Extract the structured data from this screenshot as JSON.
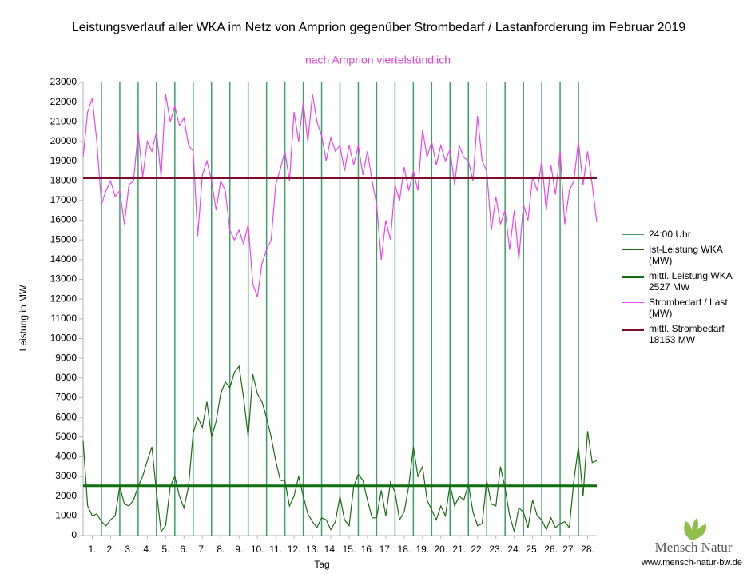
{
  "chart_data": {
    "type": "line",
    "title": "Leistungsverlauf aller WKA im Netz von Amprion gegenüber  Strombedarf / Lastanforderung im Februar 2019",
    "subtitle": "nach Amprion viertelstündlich",
    "xlabel": "Tag",
    "ylabel": "Leistung in MW",
    "xlim": [
      0,
      28
    ],
    "ylim": [
      0,
      23000
    ],
    "yticks": [
      0,
      1000,
      2000,
      3000,
      4000,
      5000,
      6000,
      7000,
      8000,
      9000,
      10000,
      11000,
      12000,
      13000,
      14000,
      15000,
      16000,
      17000,
      18000,
      19000,
      20000,
      21000,
      22000,
      23000
    ],
    "xticks": [
      {
        "value": 0.5,
        "label": "1."
      },
      {
        "value": 1.5,
        "label": "2."
      },
      {
        "value": 2.5,
        "label": "3."
      },
      {
        "value": 3.5,
        "label": "4."
      },
      {
        "value": 4.5,
        "label": "5."
      },
      {
        "value": 5.5,
        "label": "6."
      },
      {
        "value": 6.5,
        "label": "7."
      },
      {
        "value": 7.5,
        "label": "8."
      },
      {
        "value": 8.5,
        "label": "9."
      },
      {
        "value": 9.5,
        "label": "10."
      },
      {
        "value": 10.5,
        "label": "11."
      },
      {
        "value": 11.5,
        "label": "12."
      },
      {
        "value": 12.5,
        "label": "13."
      },
      {
        "value": 13.5,
        "label": "14."
      },
      {
        "value": 14.5,
        "label": "15."
      },
      {
        "value": 15.5,
        "label": "16."
      },
      {
        "value": 16.5,
        "label": "17."
      },
      {
        "value": 17.5,
        "label": "18."
      },
      {
        "value": 18.5,
        "label": "19."
      },
      {
        "value": 19.5,
        "label": "20."
      },
      {
        "value": 20.5,
        "label": "21."
      },
      {
        "value": 21.5,
        "label": "22."
      },
      {
        "value": 22.5,
        "label": "23."
      },
      {
        "value": 23.5,
        "label": "24."
      },
      {
        "value": 24.5,
        "label": "25."
      },
      {
        "value": 25.5,
        "label": "26."
      },
      {
        "value": 26.5,
        "label": "27."
      },
      {
        "value": 27.5,
        "label": "28."
      }
    ],
    "x": [
      0,
      0.25,
      0.5,
      0.75,
      1,
      1.25,
      1.5,
      1.75,
      2,
      2.25,
      2.5,
      2.75,
      3,
      3.25,
      3.5,
      3.75,
      4,
      4.25,
      4.5,
      4.75,
      5,
      5.25,
      5.5,
      5.75,
      6,
      6.25,
      6.5,
      6.75,
      7,
      7.25,
      7.5,
      7.75,
      8,
      8.25,
      8.5,
      8.75,
      9,
      9.25,
      9.5,
      9.75,
      10,
      10.25,
      10.5,
      10.75,
      11,
      11.25,
      11.5,
      11.75,
      12,
      12.25,
      12.5,
      12.75,
      13,
      13.25,
      13.5,
      13.75,
      14,
      14.25,
      14.5,
      14.75,
      15,
      15.25,
      15.5,
      15.75,
      16,
      16.25,
      16.5,
      16.75,
      17,
      17.25,
      17.5,
      17.75,
      18,
      18.25,
      18.5,
      18.75,
      19,
      19.25,
      19.5,
      19.75,
      20,
      20.25,
      20.5,
      20.75,
      21,
      21.25,
      21.5,
      21.75,
      22,
      22.25,
      22.5,
      22.75,
      23,
      23.25,
      23.5,
      23.75,
      24,
      24.25,
      24.5,
      24.75,
      25,
      25.25,
      25.5,
      25.75,
      26,
      26.25,
      26.5,
      26.75,
      27,
      27.25,
      27.5,
      27.75,
      28
    ],
    "series": [
      {
        "name": "24:00 Uhr",
        "type": "vline",
        "color": "#3aa06a",
        "x": [
          1,
          2,
          3,
          4,
          5,
          6,
          7,
          8,
          9,
          10,
          11,
          12,
          13,
          14,
          15,
          16,
          17,
          18,
          19,
          20,
          21,
          22,
          23,
          24,
          25,
          26,
          27
        ]
      },
      {
        "name": "Ist-Leistung WKA (MW)",
        "type": "line",
        "color": "#1e6b10",
        "values": [
          4800,
          1500,
          1000,
          1100,
          700,
          500,
          800,
          1000,
          2500,
          1600,
          1500,
          1800,
          2500,
          3000,
          3800,
          4500,
          2200,
          200,
          500,
          2500,
          3000,
          2000,
          1400,
          2500,
          5200,
          6000,
          5500,
          6800,
          5000,
          5800,
          7200,
          7800,
          7500,
          8300,
          8600,
          7000,
          5000,
          8200,
          7200,
          6800,
          6000,
          5000,
          3800,
          2800,
          2800,
          1500,
          2000,
          3000,
          2000,
          1100,
          700,
          400,
          900,
          800,
          300,
          700,
          2000,
          800,
          500,
          2500,
          3100,
          2800,
          1800,
          900,
          900,
          2300,
          1000,
          2700,
          2200,
          800,
          1200,
          2500,
          4500,
          3000,
          3500,
          1800,
          1300,
          800,
          1500,
          1000,
          2600,
          1500,
          2000,
          1800,
          2600,
          1200,
          500,
          600,
          2800,
          1600,
          1500,
          3500,
          2400,
          1000,
          200,
          1400,
          1200,
          400,
          1800,
          1000,
          800,
          300,
          900,
          400,
          600,
          700,
          400,
          2800,
          4500,
          2000,
          5300,
          3700,
          3800
        ]
      },
      {
        "name": "mittl. Leistung WKA 2527 MW",
        "type": "hline",
        "color": "#0f6e0f",
        "value": 2527
      },
      {
        "name": "Strombedarf / Last (MW)",
        "type": "line",
        "color": "#ee44ee",
        "values": [
          19200,
          21500,
          22200,
          20000,
          16800,
          17500,
          18000,
          17200,
          17500,
          15800,
          17800,
          18000,
          20500,
          18200,
          20000,
          19500,
          20500,
          18200,
          22400,
          21000,
          21800,
          20800,
          21200,
          19800,
          19500,
          15200,
          18300,
          19000,
          18000,
          16500,
          18000,
          17500,
          15500,
          15000,
          15500,
          14800,
          15800,
          12800,
          12100,
          13800,
          14500,
          15000,
          17800,
          18600,
          19500,
          18000,
          21500,
          20000,
          22000,
          20000,
          22400,
          21000,
          20300,
          19000,
          20200,
          19500,
          19800,
          18500,
          19800,
          18800,
          19800,
          18300,
          19500,
          18000,
          16800,
          14000,
          16000,
          15000,
          17800,
          17000,
          18700,
          17500,
          18500,
          17500,
          20600,
          19200,
          20000,
          18800,
          19800,
          19000,
          19600,
          17800,
          19800,
          19200,
          19000,
          18000,
          21300,
          19000,
          18500,
          15500,
          17200,
          15800,
          16500,
          14500,
          16500,
          14000,
          16800,
          16000,
          18200,
          17500,
          19000,
          16500,
          18800,
          17300,
          19500,
          15800,
          17500,
          18000,
          20000,
          17800,
          19500,
          17800,
          15900
        ]
      },
      {
        "name": "mittl. Strombedarf 18153 MW",
        "type": "hline",
        "color": "#7a0b2a",
        "value": 18153
      }
    ]
  },
  "branding": {
    "logo": "Mensch Natur",
    "url": "www.mensch-natur-bw.de"
  }
}
